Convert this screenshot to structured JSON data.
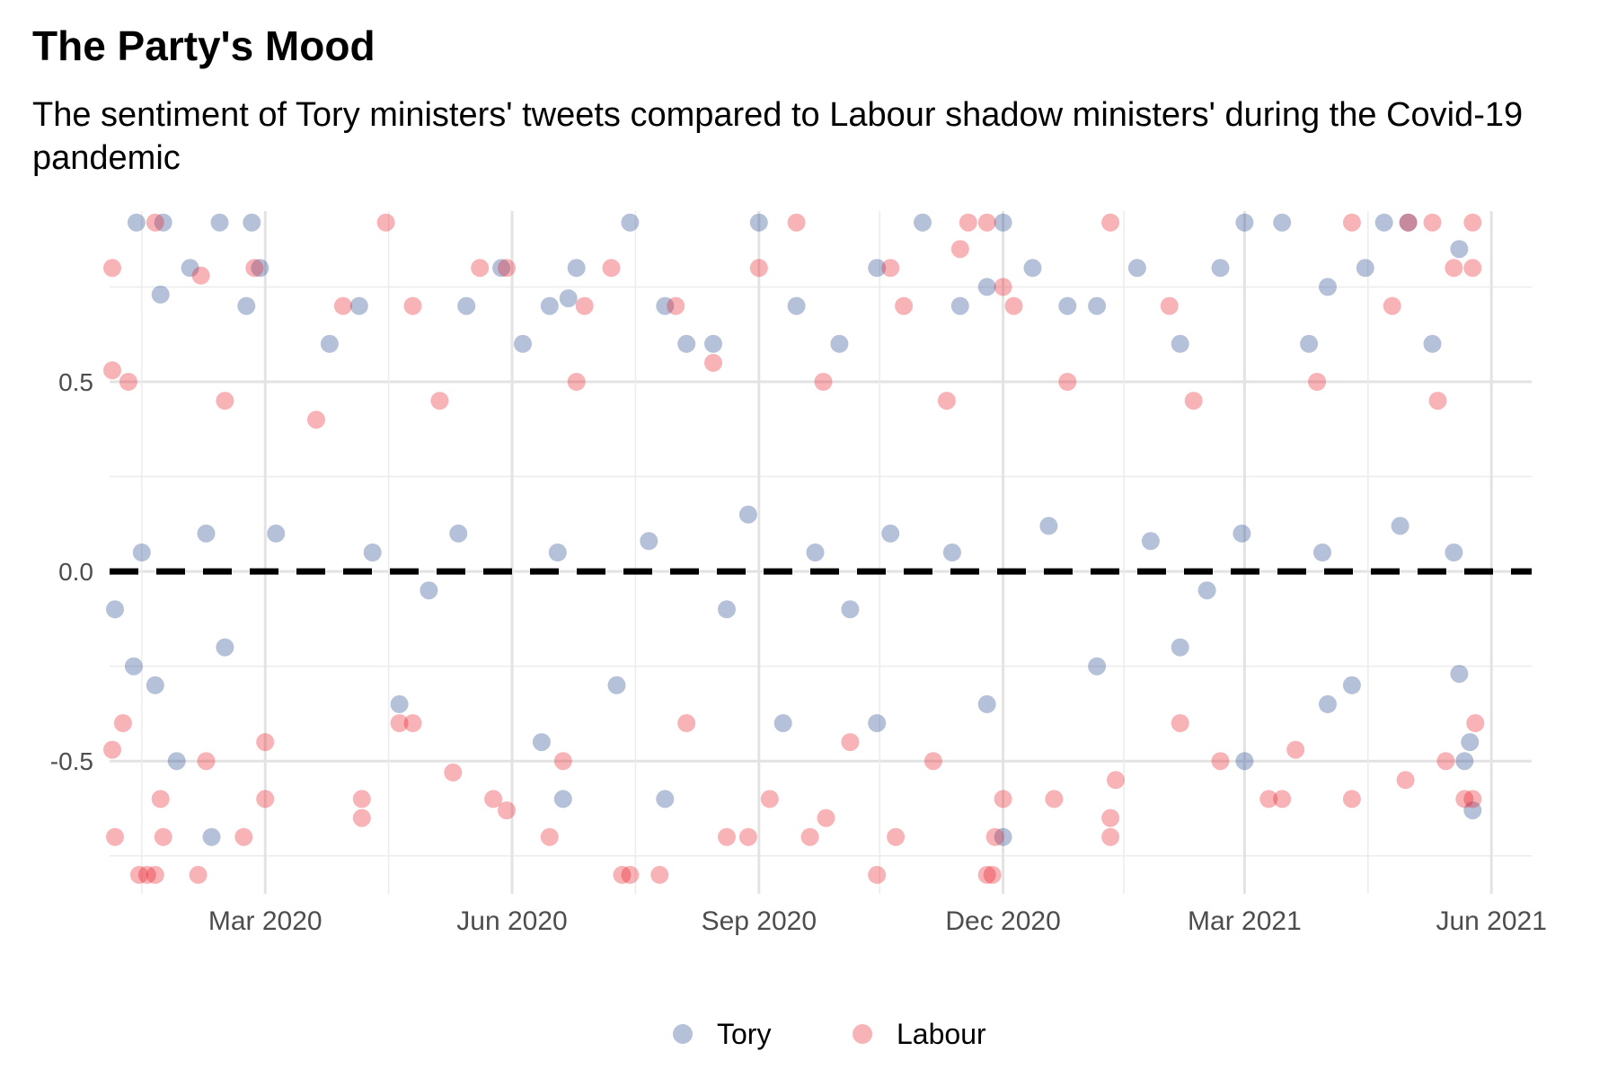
{
  "chart_data": {
    "type": "scatter",
    "title": "The Party's Mood",
    "subtitle": "The sentiment of Tory ministers' tweets compared to Labour shadow ministers' during the Covid-19 pandemic",
    "xlabel": "",
    "ylabel": "",
    "x_axis": {
      "type": "date",
      "range": [
        "2020-01-03",
        "2021-06-16"
      ],
      "ticks": [
        {
          "date": "2020-03-01",
          "label": "Mar 2020"
        },
        {
          "date": "2020-06-01",
          "label": "Jun 2020"
        },
        {
          "date": "2020-09-01",
          "label": "Sep 2020"
        },
        {
          "date": "2020-12-01",
          "label": "Dec 2020"
        },
        {
          "date": "2021-03-01",
          "label": "Mar 2021"
        },
        {
          "date": "2021-06-01",
          "label": "Jun 2021"
        }
      ]
    },
    "y_axis": {
      "range": [
        -0.85,
        0.95
      ],
      "ticks": [
        {
          "value": 0.5,
          "label": "0.5"
        },
        {
          "value": 0.0,
          "label": "0.0"
        },
        {
          "value": -0.5,
          "label": "-0.5"
        }
      ]
    },
    "reference_line": {
      "y": 0,
      "style": "dashed",
      "color": "#000000"
    },
    "grid": true,
    "legend": {
      "position": "bottom"
    },
    "series": [
      {
        "name": "Tory",
        "color": "#1a3f8a",
        "points": [
          [
            "2020-01-13",
            0.92
          ],
          [
            "2020-01-23",
            0.92
          ],
          [
            "2020-02-13",
            0.92
          ],
          [
            "2020-02-25",
            0.92
          ],
          [
            "2020-01-22",
            0.73
          ],
          [
            "2020-02-02",
            0.8
          ],
          [
            "2020-02-23",
            0.7
          ],
          [
            "2020-02-28",
            0.8
          ],
          [
            "2020-04-05",
            0.7
          ],
          [
            "2020-05-15",
            0.7
          ],
          [
            "2020-05-28",
            0.8
          ],
          [
            "2020-06-15",
            0.7
          ],
          [
            "2020-06-22",
            0.72
          ],
          [
            "2020-06-25",
            0.8
          ],
          [
            "2020-07-15",
            0.92
          ],
          [
            "2020-07-28",
            0.7
          ],
          [
            "2020-08-15",
            0.6
          ],
          [
            "2020-09-01",
            0.92
          ],
          [
            "2020-09-15",
            0.7
          ],
          [
            "2020-10-15",
            0.8
          ],
          [
            "2020-11-01",
            0.92
          ],
          [
            "2020-11-15",
            0.7
          ],
          [
            "2020-11-25",
            0.75
          ],
          [
            "2020-12-01",
            0.92
          ],
          [
            "2020-12-12",
            0.8
          ],
          [
            "2021-01-05",
            0.7
          ],
          [
            "2021-01-20",
            0.8
          ],
          [
            "2021-02-20",
            0.8
          ],
          [
            "2021-03-01",
            0.92
          ],
          [
            "2021-03-15",
            0.92
          ],
          [
            "2021-04-01",
            0.75
          ],
          [
            "2021-04-15",
            0.8
          ],
          [
            "2021-04-22",
            0.92
          ],
          [
            "2021-05-01",
            0.92
          ],
          [
            "2021-05-20",
            0.85
          ],
          [
            "2020-12-25",
            0.7
          ],
          [
            "2020-03-25",
            0.6
          ],
          [
            "2020-06-05",
            0.6
          ],
          [
            "2020-08-05",
            0.6
          ],
          [
            "2020-10-01",
            0.6
          ],
          [
            "2021-02-05",
            0.6
          ],
          [
            "2021-03-25",
            0.6
          ],
          [
            "2021-05-10",
            0.6
          ],
          [
            "2020-01-05",
            -0.1
          ],
          [
            "2020-01-12",
            -0.25
          ],
          [
            "2020-02-10",
            -0.7
          ],
          [
            "2020-01-28",
            -0.5
          ],
          [
            "2020-01-20",
            -0.3
          ],
          [
            "2020-02-15",
            -0.2
          ],
          [
            "2020-04-20",
            -0.35
          ],
          [
            "2020-06-12",
            -0.45
          ],
          [
            "2020-06-20",
            -0.6
          ],
          [
            "2020-07-28",
            -0.6
          ],
          [
            "2020-07-10",
            -0.3
          ],
          [
            "2020-09-10",
            -0.4
          ],
          [
            "2020-10-15",
            -0.4
          ],
          [
            "2020-11-25",
            -0.35
          ],
          [
            "2020-12-01",
            -0.7
          ],
          [
            "2021-01-05",
            -0.25
          ],
          [
            "2021-02-05",
            -0.2
          ],
          [
            "2021-03-01",
            -0.5
          ],
          [
            "2021-04-01",
            -0.35
          ],
          [
            "2021-04-10",
            -0.3
          ],
          [
            "2021-05-22",
            -0.5
          ],
          [
            "2021-05-25",
            -0.63
          ],
          [
            "2021-05-24",
            -0.45
          ],
          [
            "2021-05-20",
            -0.27
          ],
          [
            "2020-08-20",
            -0.1
          ],
          [
            "2020-10-05",
            -0.1
          ],
          [
            "2021-02-15",
            -0.05
          ],
          [
            "2020-05-01",
            -0.05
          ],
          [
            "2020-01-15",
            0.05
          ],
          [
            "2020-02-08",
            0.1
          ],
          [
            "2020-03-05",
            0.1
          ],
          [
            "2020-04-10",
            0.05
          ],
          [
            "2020-05-12",
            0.1
          ],
          [
            "2020-06-18",
            0.05
          ],
          [
            "2020-07-22",
            0.08
          ],
          [
            "2020-08-28",
            0.15
          ],
          [
            "2020-09-22",
            0.05
          ],
          [
            "2020-10-20",
            0.1
          ],
          [
            "2020-11-12",
            0.05
          ],
          [
            "2020-12-18",
            0.12
          ],
          [
            "2021-01-25",
            0.08
          ],
          [
            "2021-02-28",
            0.1
          ],
          [
            "2021-03-30",
            0.05
          ],
          [
            "2021-04-28",
            0.12
          ],
          [
            "2021-05-18",
            0.05
          ]
        ]
      },
      {
        "name": "Labour",
        "color": "#e8141e",
        "points": [
          [
            "2020-01-04",
            0.8
          ],
          [
            "2020-01-20",
            0.92
          ],
          [
            "2020-02-06",
            0.78
          ],
          [
            "2020-02-26",
            0.8
          ],
          [
            "2020-04-15",
            0.92
          ],
          [
            "2020-05-20",
            0.8
          ],
          [
            "2020-05-30",
            0.8
          ],
          [
            "2020-07-08",
            0.8
          ],
          [
            "2020-09-15",
            0.92
          ],
          [
            "2020-09-01",
            0.8
          ],
          [
            "2020-10-20",
            0.8
          ],
          [
            "2020-11-18",
            0.92
          ],
          [
            "2020-11-25",
            0.92
          ],
          [
            "2020-11-15",
            0.85
          ],
          [
            "2020-12-01",
            0.75
          ],
          [
            "2021-01-10",
            0.92
          ],
          [
            "2021-04-10",
            0.92
          ],
          [
            "2021-05-01",
            0.92
          ],
          [
            "2021-05-10",
            0.92
          ],
          [
            "2021-05-18",
            0.8
          ],
          [
            "2021-05-25",
            0.92
          ],
          [
            "2021-05-25",
            0.8
          ],
          [
            "2021-04-25",
            0.7
          ],
          [
            "2021-02-01",
            0.7
          ],
          [
            "2020-03-30",
            0.7
          ],
          [
            "2020-04-25",
            0.7
          ],
          [
            "2020-06-28",
            0.7
          ],
          [
            "2020-08-01",
            0.7
          ],
          [
            "2020-10-25",
            0.7
          ],
          [
            "2020-12-05",
            0.7
          ],
          [
            "2020-01-04",
            -0.47
          ],
          [
            "2020-01-05",
            -0.7
          ],
          [
            "2020-01-08",
            -0.4
          ],
          [
            "2020-01-14",
            -0.8
          ],
          [
            "2020-01-17",
            -0.8
          ],
          [
            "2020-01-20",
            -0.8
          ],
          [
            "2020-01-23",
            -0.7
          ],
          [
            "2020-01-22",
            -0.6
          ],
          [
            "2020-02-05",
            -0.8
          ],
          [
            "2020-02-08",
            -0.5
          ],
          [
            "2020-02-22",
            -0.7
          ],
          [
            "2020-03-01",
            -0.6
          ],
          [
            "2020-03-01",
            -0.45
          ],
          [
            "2020-04-06",
            -0.65
          ],
          [
            "2020-04-06",
            -0.6
          ],
          [
            "2020-04-20",
            -0.4
          ],
          [
            "2020-05-10",
            -0.53
          ],
          [
            "2020-05-25",
            -0.6
          ],
          [
            "2020-05-30",
            -0.63
          ],
          [
            "2020-06-15",
            -0.7
          ],
          [
            "2020-07-12",
            -0.8
          ],
          [
            "2020-07-15",
            -0.8
          ],
          [
            "2020-07-26",
            -0.8
          ],
          [
            "2020-08-20",
            -0.7
          ],
          [
            "2020-08-28",
            -0.7
          ],
          [
            "2020-09-05",
            -0.6
          ],
          [
            "2020-09-20",
            -0.7
          ],
          [
            "2020-09-26",
            -0.65
          ],
          [
            "2020-10-15",
            -0.8
          ],
          [
            "2020-10-22",
            -0.7
          ],
          [
            "2020-11-25",
            -0.8
          ],
          [
            "2020-11-27",
            -0.8
          ],
          [
            "2020-11-28",
            -0.7
          ],
          [
            "2020-12-01",
            -0.6
          ],
          [
            "2020-12-20",
            -0.6
          ],
          [
            "2021-01-10",
            -0.7
          ],
          [
            "2021-01-10",
            -0.65
          ],
          [
            "2021-01-12",
            -0.55
          ],
          [
            "2021-02-20",
            -0.5
          ],
          [
            "2021-03-10",
            -0.6
          ],
          [
            "2021-03-15",
            -0.6
          ],
          [
            "2021-04-10",
            -0.6
          ],
          [
            "2021-04-30",
            -0.55
          ],
          [
            "2021-05-15",
            -0.5
          ],
          [
            "2021-05-22",
            -0.6
          ],
          [
            "2021-05-25",
            -0.6
          ],
          [
            "2021-05-26",
            -0.4
          ],
          [
            "2021-03-20",
            -0.47
          ],
          [
            "2020-04-25",
            -0.4
          ],
          [
            "2020-06-20",
            -0.5
          ],
          [
            "2020-08-05",
            -0.4
          ],
          [
            "2020-10-05",
            -0.45
          ],
          [
            "2020-11-05",
            -0.5
          ],
          [
            "2021-02-05",
            -0.4
          ],
          [
            "2020-01-04",
            0.53
          ],
          [
            "2020-01-10",
            0.5
          ],
          [
            "2020-02-15",
            0.45
          ],
          [
            "2020-03-20",
            0.4
          ],
          [
            "2020-05-05",
            0.45
          ],
          [
            "2020-06-25",
            0.5
          ],
          [
            "2020-08-15",
            0.55
          ],
          [
            "2020-09-25",
            0.5
          ],
          [
            "2020-11-10",
            0.45
          ],
          [
            "2020-12-25",
            0.5
          ],
          [
            "2021-02-10",
            0.45
          ],
          [
            "2021-03-28",
            0.5
          ],
          [
            "2021-05-12",
            0.45
          ]
        ]
      }
    ]
  },
  "legend_items": [
    {
      "label": "Tory",
      "color": "#1a3f8a"
    },
    {
      "label": "Labour",
      "color": "#e8141e"
    }
  ]
}
